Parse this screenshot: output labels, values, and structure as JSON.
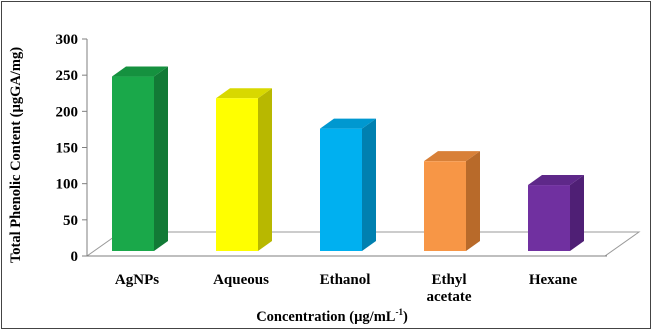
{
  "chart_data": {
    "type": "bar",
    "title": "",
    "xlabel": "Concentration (µg/mL",
    "xlabel_sup": "-1",
    "xlabel_close": ")",
    "ylabel": "Total Phenolic Content (µgGA/mg)",
    "categories": [
      [
        "AgNPs"
      ],
      [
        "Aqueous"
      ],
      [
        "Ethanol"
      ],
      [
        "Ethyl",
        "acetate"
      ],
      [
        "Hexane"
      ]
    ],
    "values": [
      255,
      225,
      183,
      138,
      105
    ],
    "ylim": [
      0,
      300
    ],
    "yticks": [
      0,
      50,
      100,
      150,
      200,
      250,
      300
    ],
    "grid": false,
    "legend": "none",
    "colors": [
      "#1aa84a",
      "#ffff00",
      "#00b0f0",
      "#f79646",
      "#7030a0"
    ],
    "side_colors": [
      "#127a36",
      "#b8b800",
      "#0080b0",
      "#b86a2a",
      "#4f1f75"
    ],
    "top_colors": [
      "#15913f",
      "#d8d800",
      "#0098d0",
      "#d88038",
      "#5e2889"
    ]
  }
}
